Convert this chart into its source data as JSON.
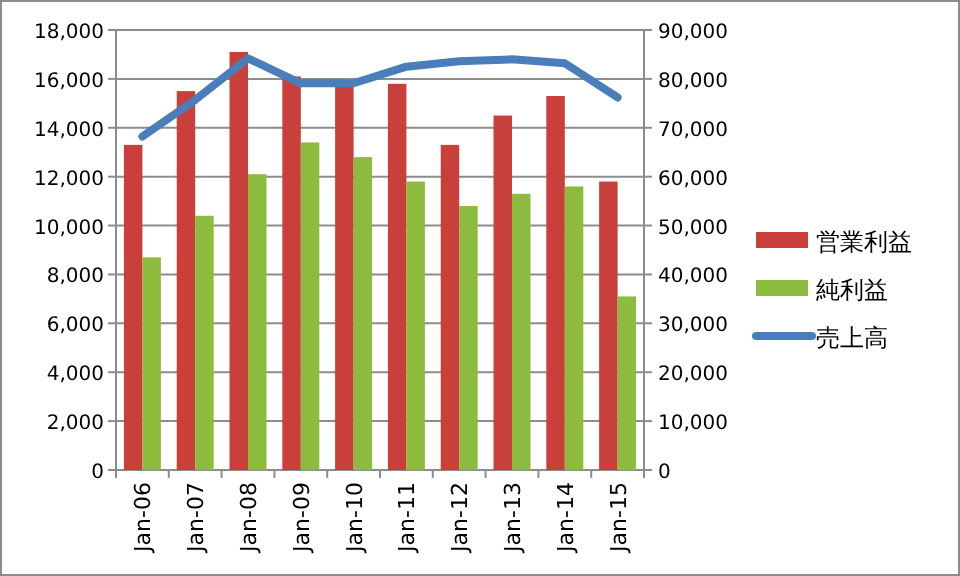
{
  "chart_data": {
    "type": "bar",
    "categories": [
      "Jan-06",
      "Jan-07",
      "Jan-08",
      "Jan-09",
      "Jan-10",
      "Jan-11",
      "Jan-12",
      "Jan-13",
      "Jan-14",
      "Jan-15"
    ],
    "series": [
      {
        "name": "営業利益",
        "color": "#c9403a",
        "values": [
          13300,
          15500,
          17100,
          16100,
          15900,
          15800,
          13300,
          14500,
          15300,
          11800
        ]
      },
      {
        "name": "純利益",
        "color": "#8cbb3e",
        "values": [
          8700,
          10400,
          12100,
          13400,
          12800,
          11800,
          10800,
          11300,
          11600,
          7100
        ]
      },
      {
        "name": "売上高",
        "type": "line",
        "axis": "y2",
        "color": "#4a7ebb",
        "values": [
          68200,
          75700,
          84200,
          79100,
          79100,
          82500,
          83600,
          84000,
          83200,
          76200
        ]
      }
    ],
    "ylim": [
      0,
      18000
    ],
    "yticks": [
      0,
      {
        "value": 2000,
        "label": "2,000"
      },
      {
        "value": 4000,
        "label": "4,000"
      },
      {
        "value": 6000,
        "label": "6,000"
      },
      {
        "value": 8000,
        "label": "8,000"
      },
      {
        "value": 10000,
        "label": "10,000"
      },
      {
        "value": 12000,
        "label": "12,000"
      },
      {
        "value": 14000,
        "label": "14,000"
      },
      {
        "value": 16000,
        "label": "16,000"
      },
      {
        "value": 18000,
        "label": "18,000"
      }
    ],
    "y2lim": [
      0,
      90000
    ],
    "y2ticks": [
      0,
      {
        "value": 10000,
        "label": "10,000"
      },
      {
        "value": 20000,
        "label": "20,000"
      },
      {
        "value": 30000,
        "label": "30,000"
      },
      {
        "value": 40000,
        "label": "40,000"
      },
      {
        "value": 50000,
        "label": "50,000"
      },
      {
        "value": 60000,
        "label": "60,000"
      },
      {
        "value": 70000,
        "label": "70,000"
      },
      {
        "value": 80000,
        "label": "80,000"
      },
      {
        "value": 90000,
        "label": "90,000"
      }
    ],
    "grid": "y",
    "legend": "right"
  }
}
